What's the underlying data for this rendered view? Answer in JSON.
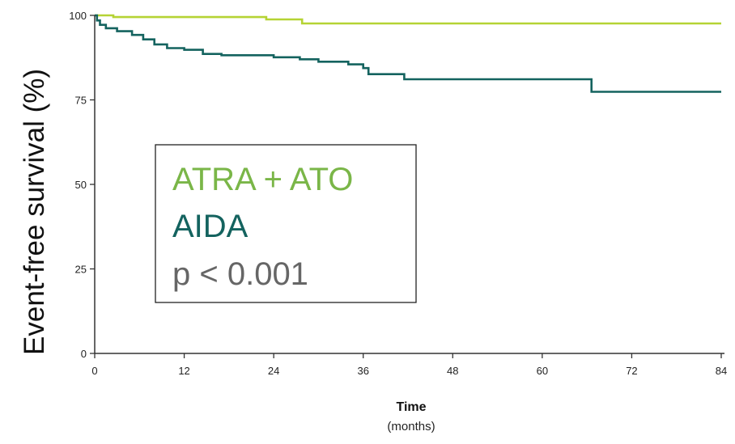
{
  "chart_data": {
    "type": "line",
    "step": true,
    "xlabel": "Time",
    "xlabel_unit": "(months)",
    "ylabel": "Event-free survival (%)",
    "xlim": [
      0,
      84
    ],
    "ylim": [
      0,
      100
    ],
    "x_ticks": [
      0,
      12,
      24,
      36,
      48,
      60,
      72,
      84
    ],
    "y_ticks": [
      0,
      25,
      50,
      75,
      100
    ],
    "grid": false,
    "legend_position": "center-left",
    "series": [
      {
        "name": "ATRA + ATO",
        "color": "#b5d334",
        "points": [
          [
            0,
            100
          ],
          [
            2.5,
            99.5
          ],
          [
            22.5,
            99.5
          ],
          [
            23,
            98.8
          ],
          [
            27.5,
            98.8
          ],
          [
            27.8,
            97.6
          ],
          [
            84,
            97.6
          ]
        ]
      },
      {
        "name": "AIDA",
        "color": "#14635f",
        "points": [
          [
            0,
            100
          ],
          [
            0.3,
            98.5
          ],
          [
            0.7,
            97.2
          ],
          [
            1.5,
            96.2
          ],
          [
            3,
            95.3
          ],
          [
            5,
            94.2
          ],
          [
            6.5,
            92.9
          ],
          [
            8,
            91.4
          ],
          [
            9.7,
            90.3
          ],
          [
            12,
            89.8
          ],
          [
            14.5,
            88.6
          ],
          [
            17,
            88.2
          ],
          [
            24,
            87.6
          ],
          [
            27.5,
            87.0
          ],
          [
            30,
            86.3
          ],
          [
            34,
            85.5
          ],
          [
            36,
            84.4
          ],
          [
            36.7,
            82.6
          ],
          [
            41.5,
            81.1
          ],
          [
            66.5,
            81.1
          ],
          [
            66.6,
            77.4
          ],
          [
            84,
            77.4
          ]
        ]
      }
    ],
    "annotation": "p < 0.001"
  }
}
